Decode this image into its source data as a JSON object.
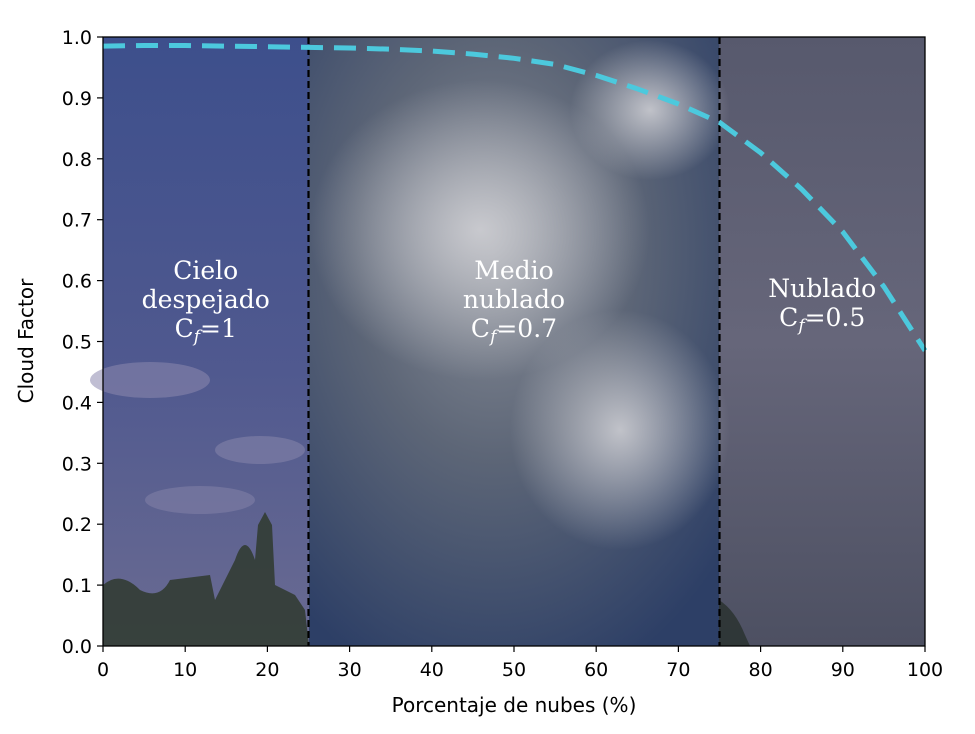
{
  "chart_data": {
    "type": "line",
    "xlabel": "Porcentaje de nubes (%)",
    "ylabel": "Cloud Factor",
    "xlim": [
      0,
      100
    ],
    "ylim": [
      0,
      1.0
    ],
    "x_ticks": [
      "0",
      "10",
      "20",
      "30",
      "40",
      "50",
      "60",
      "70",
      "80",
      "90",
      "100"
    ],
    "y_ticks": [
      "0.0",
      "0.1",
      "0.2",
      "0.3",
      "0.4",
      "0.5",
      "0.6",
      "0.7",
      "0.8",
      "0.9",
      "1.0"
    ],
    "series": [
      {
        "style": "dashed",
        "color": "#4cc9dd",
        "x": [
          0,
          5,
          10,
          15,
          20,
          25,
          30,
          35,
          40,
          45,
          50,
          55,
          60,
          65,
          70,
          75,
          80,
          85,
          90,
          95,
          100
        ],
        "y": [
          0.985,
          0.986,
          0.986,
          0.985,
          0.984,
          0.983,
          0.982,
          0.98,
          0.977,
          0.972,
          0.965,
          0.955,
          0.937,
          0.915,
          0.89,
          0.86,
          0.81,
          0.75,
          0.68,
          0.59,
          0.485
        ]
      }
    ],
    "vlines": [
      25,
      75
    ],
    "regions": [
      {
        "x_from": 0,
        "x_to": 25,
        "label_lines": [
          "Cielo",
          "despejado",
          "Cf=1"
        ]
      },
      {
        "x_from": 25,
        "x_to": 75,
        "label_lines": [
          "Medio",
          "nublado",
          "Cf=0.7"
        ]
      },
      {
        "x_from": 75,
        "x_to": 100,
        "label_lines": [
          "Nublado",
          "Cf=0.5"
        ]
      }
    ],
    "grid": false
  }
}
